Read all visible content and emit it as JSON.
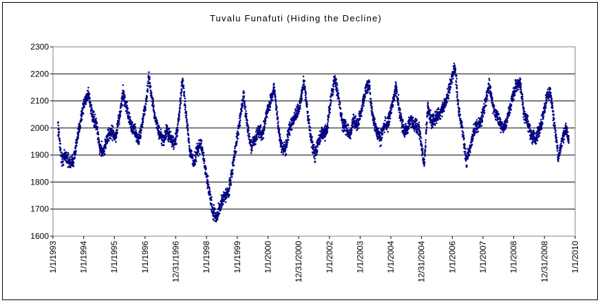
{
  "chart_data": {
    "type": "scatter",
    "title": "Tuvalu Funafuti (Hiding the Decline)",
    "xlabel": "",
    "ylabel": "",
    "y_ticks": [
      1600,
      1700,
      1800,
      1900,
      2000,
      2100,
      2200,
      2300
    ],
    "ylim": [
      1600,
      2300
    ],
    "x_ticks": [
      "1/1/1993",
      "1/1/1994",
      "1/1/1995",
      "1/1/1996",
      "12/31/1996",
      "1/1/1998",
      "1/1/1999",
      "1/1/2000",
      "12/31/2000",
      "1/1/2002",
      "1/1/2003",
      "1/1/2004",
      "12/31/2004",
      "1/1/2006",
      "1/1/2007",
      "1/1/2008",
      "12/31/2008",
      "1/1/2010"
    ],
    "xlim": [
      "1993-01-01",
      "2010-01-01"
    ],
    "grid": "horizontal",
    "legend": "none",
    "marker_color": "#000080",
    "plot_background": "#ffffff",
    "series": [
      {
        "points": [
          [
            "1993-03-01",
            2010
          ],
          [
            "1993-04-15",
            1880
          ],
          [
            "1993-06-01",
            1900
          ],
          [
            "1993-07-15",
            1870
          ],
          [
            "1993-09-01",
            1880
          ],
          [
            "1993-10-20",
            1960
          ],
          [
            "1993-12-01",
            2040
          ],
          [
            "1994-01-15",
            2100
          ],
          [
            "1994-03-01",
            2130
          ],
          [
            "1994-04-15",
            2040
          ],
          [
            "1994-06-01",
            2010
          ],
          [
            "1994-07-15",
            1920
          ],
          [
            "1994-09-01",
            1920
          ],
          [
            "1994-10-15",
            1970
          ],
          [
            "1994-12-01",
            1990
          ],
          [
            "1995-01-15",
            1960
          ],
          [
            "1995-03-01",
            2040
          ],
          [
            "1995-04-15",
            2130
          ],
          [
            "1995-06-01",
            2070
          ],
          [
            "1995-07-15",
            2010
          ],
          [
            "1995-09-01",
            1990
          ],
          [
            "1995-10-15",
            1950
          ],
          [
            "1995-12-01",
            2020
          ],
          [
            "1996-01-15",
            2100
          ],
          [
            "1996-02-15",
            2190
          ],
          [
            "1996-03-20",
            2110
          ],
          [
            "1996-05-01",
            2040
          ],
          [
            "1996-06-15",
            1980
          ],
          [
            "1996-08-01",
            1950
          ],
          [
            "1996-09-15",
            1990
          ],
          [
            "1996-11-01",
            1960
          ],
          [
            "1996-12-15",
            1940
          ],
          [
            "1997-01-15",
            1980
          ],
          [
            "1997-02-15",
            2060
          ],
          [
            "1997-03-20",
            2180
          ],
          [
            "1997-05-01",
            2060
          ],
          [
            "1997-06-15",
            1920
          ],
          [
            "1997-08-01",
            1870
          ],
          [
            "1997-09-15",
            1920
          ],
          [
            "1997-11-01",
            1940
          ],
          [
            "1997-12-15",
            1850
          ],
          [
            "1998-02-01",
            1770
          ],
          [
            "1998-03-15",
            1690
          ],
          [
            "1998-05-01",
            1670
          ],
          [
            "1998-06-15",
            1710
          ],
          [
            "1998-08-01",
            1750
          ],
          [
            "1998-09-15",
            1760
          ],
          [
            "1998-11-01",
            1840
          ],
          [
            "1998-12-15",
            1930
          ],
          [
            "1999-02-01",
            2030
          ],
          [
            "1999-03-15",
            2120
          ],
          [
            "1999-05-01",
            2010
          ],
          [
            "1999-06-15",
            1930
          ],
          [
            "1999-08-01",
            1960
          ],
          [
            "1999-09-15",
            1990
          ],
          [
            "1999-11-01",
            1980
          ],
          [
            "1999-12-15",
            2050
          ],
          [
            "2000-02-01",
            2100
          ],
          [
            "2000-03-15",
            2150
          ],
          [
            "2000-05-01",
            2010
          ],
          [
            "2000-06-15",
            1920
          ],
          [
            "2000-08-01",
            1930
          ],
          [
            "2000-09-15",
            2000
          ],
          [
            "2000-11-01",
            2040
          ],
          [
            "2000-12-15",
            2050
          ],
          [
            "2001-02-01",
            2110
          ],
          [
            "2001-03-01",
            2180
          ],
          [
            "2001-04-15",
            2060
          ],
          [
            "2001-06-01",
            1950
          ],
          [
            "2001-07-15",
            1900
          ],
          [
            "2001-09-01",
            1960
          ],
          [
            "2001-10-15",
            1980
          ],
          [
            "2001-12-01",
            1990
          ],
          [
            "2002-01-15",
            2100
          ],
          [
            "2002-03-01",
            2180
          ],
          [
            "2002-04-15",
            2130
          ],
          [
            "2002-06-01",
            2020
          ],
          [
            "2002-07-15",
            2000
          ],
          [
            "2002-09-01",
            1970
          ],
          [
            "2002-10-15",
            2030
          ],
          [
            "2002-12-01",
            2010
          ],
          [
            "2003-01-15",
            2060
          ],
          [
            "2003-03-01",
            2130
          ],
          [
            "2003-04-15",
            2160
          ],
          [
            "2003-06-01",
            2040
          ],
          [
            "2003-07-15",
            1990
          ],
          [
            "2003-09-01",
            1960
          ],
          [
            "2003-10-15",
            2010
          ],
          [
            "2003-12-01",
            2020
          ],
          [
            "2004-01-15",
            2080
          ],
          [
            "2004-03-01",
            2150
          ],
          [
            "2004-04-15",
            2060
          ],
          [
            "2004-06-01",
            1990
          ],
          [
            "2004-07-15",
            2000
          ],
          [
            "2004-09-01",
            2030
          ],
          [
            "2004-10-15",
            2010
          ],
          [
            "2004-12-01",
            2000
          ],
          [
            "2005-02-01",
            1860
          ],
          [
            "2005-03-15",
            2080
          ],
          [
            "2005-05-01",
            2020
          ],
          [
            "2005-06-15",
            2040
          ],
          [
            "2005-08-01",
            2050
          ],
          [
            "2005-09-15",
            2070
          ],
          [
            "2005-11-01",
            2110
          ],
          [
            "2005-12-15",
            2170
          ],
          [
            "2006-02-01",
            2230
          ],
          [
            "2006-03-15",
            2080
          ],
          [
            "2006-05-01",
            1990
          ],
          [
            "2006-06-15",
            1880
          ],
          [
            "2006-08-01",
            1920
          ],
          [
            "2006-09-15",
            1990
          ],
          [
            "2006-11-01",
            2010
          ],
          [
            "2006-12-15",
            2030
          ],
          [
            "2007-02-01",
            2100
          ],
          [
            "2007-03-15",
            2160
          ],
          [
            "2007-05-01",
            2080
          ],
          [
            "2007-06-15",
            2050
          ],
          [
            "2007-08-01",
            2010
          ],
          [
            "2007-09-15",
            2000
          ],
          [
            "2007-11-01",
            2050
          ],
          [
            "2007-12-15",
            2110
          ],
          [
            "2008-02-01",
            2160
          ],
          [
            "2008-03-15",
            2170
          ],
          [
            "2008-05-01",
            2050
          ],
          [
            "2008-06-15",
            2020
          ],
          [
            "2008-08-01",
            1970
          ],
          [
            "2008-09-15",
            1960
          ],
          [
            "2008-11-01",
            1990
          ],
          [
            "2008-12-15",
            2040
          ],
          [
            "2009-02-01",
            2120
          ],
          [
            "2009-03-15",
            2130
          ],
          [
            "2009-05-01",
            2010
          ],
          [
            "2009-06-15",
            1890
          ],
          [
            "2009-08-01",
            1960
          ],
          [
            "2009-09-15",
            2000
          ],
          [
            "2009-10-20",
            1950
          ]
        ]
      }
    ]
  }
}
